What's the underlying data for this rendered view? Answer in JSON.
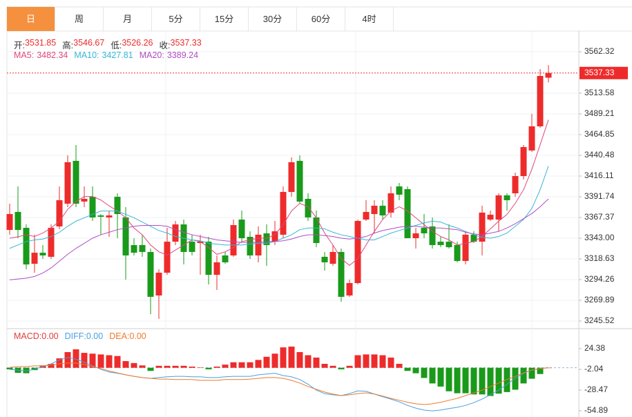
{
  "tabs": [
    {
      "label": "日",
      "active": true
    },
    {
      "label": "周",
      "active": false
    },
    {
      "label": "月",
      "active": false
    },
    {
      "label": "5分",
      "active": false
    },
    {
      "label": "15分",
      "active": false
    },
    {
      "label": "30分",
      "active": false
    },
    {
      "label": "60分",
      "active": false
    },
    {
      "label": "4时",
      "active": false
    }
  ],
  "chart_data": [
    {
      "type": "candlestick",
      "up_color": "#ee2b2b",
      "down_color": "#1a9a1a",
      "grid": true,
      "ohlc_labels": [
        "开:",
        "高:",
        "低:",
        "收:"
      ],
      "open": [
        3352.7,
        3373.9,
        3355.2,
        3312.9,
        3325.9,
        3321.1,
        3356.8,
        3383.6,
        3434.0,
        3386.1,
        3391.7,
        3369.8,
        3367.4,
        3391.7,
        3367.4,
        3334.9,
        3334.9,
        3326.8,
        3275.6,
        3302.4,
        3338.9,
        3359.2,
        3338.9,
        3337.3,
        3338.9,
        3299.9,
        3322.7,
        3322.7,
        3364.9,
        3344.6,
        3322.7,
        3348.7,
        3338.9,
        3347.1,
        3397.4,
        3434.0,
        3389.3,
        3367.4,
        3321.1,
        3312.9,
        3326.8,
        3275.6,
        3290.2,
        3364.9,
        3371.4,
        3381.2,
        3373.1,
        3403.9,
        3400.7,
        3343.0,
        3355.2,
        3356.8,
        3338.9,
        3338.9,
        3334.9,
        3316.2,
        3347.1,
        3338.9,
        3364.9,
        3364.9,
        3393.4,
        3395.8,
        3416.1,
        3446.2,
        3474.6,
        3531.85
      ],
      "high": [
        3383.6,
        3403.9,
        3359.2,
        3347.1,
        3334.9,
        3359.2,
        3403.9,
        3440.5,
        3452.7,
        3403.9,
        3403.9,
        3371.4,
        3375.5,
        3395.8,
        3379.6,
        3343.0,
        3347.1,
        3330.8,
        3306.4,
        3355.2,
        3363.3,
        3364.9,
        3347.1,
        3347.1,
        3344.6,
        3322.7,
        3326.8,
        3364.9,
        3375.5,
        3351.1,
        3356.8,
        3359.2,
        3363.3,
        3403.9,
        3438.0,
        3440.5,
        3395.8,
        3375.5,
        3326.8,
        3334.9,
        3330.8,
        3294.3,
        3364.9,
        3387.7,
        3387.7,
        3387.7,
        3403.9,
        3408.0,
        3403.9,
        3355.2,
        3371.4,
        3367.4,
        3344.6,
        3359.2,
        3338.9,
        3351.1,
        3351.1,
        3381.2,
        3375.5,
        3395.8,
        3395.8,
        3420.2,
        3452.7,
        3489.2,
        3542.0,
        3546.67
      ],
      "low": [
        3347.1,
        3343.0,
        3306.4,
        3302.4,
        3318.6,
        3318.6,
        3353.6,
        3379.6,
        3379.6,
        3379.6,
        3363.3,
        3347.1,
        3344.6,
        3343.0,
        3294.3,
        3322.7,
        3321.1,
        3253.6,
        3248.0,
        3299.9,
        3334.9,
        3312.1,
        3322.7,
        3299.9,
        3288.6,
        3282.1,
        3312.9,
        3321.1,
        3338.9,
        3318.6,
        3314.6,
        3310.5,
        3334.9,
        3343.0,
        3391.7,
        3383.6,
        3363.3,
        3332.4,
        3304.8,
        3310.5,
        3268.3,
        3274.0,
        3288.6,
        3363.3,
        3348.7,
        3364.9,
        3367.4,
        3387.7,
        3343.0,
        3330.8,
        3343.0,
        3330.8,
        3332.4,
        3330.8,
        3314.6,
        3312.1,
        3337.3,
        3322.7,
        3363.3,
        3351.1,
        3375.5,
        3391.7,
        3412.0,
        3444.5,
        3473.0,
        3526.26
      ],
      "close": [
        3371.4,
        3352.7,
        3312.1,
        3325.9,
        3322.7,
        3355.2,
        3387.7,
        3432.4,
        3383.6,
        3389.3,
        3367.4,
        3368.2,
        3369.8,
        3371.4,
        3322.7,
        3325.9,
        3326.8,
        3274.0,
        3302.4,
        3338.9,
        3359.2,
        3326.8,
        3326.8,
        3338.9,
        3299.9,
        3314.6,
        3314.6,
        3358.4,
        3343.0,
        3322.7,
        3347.1,
        3334.9,
        3351.1,
        3397.4,
        3432.4,
        3386.1,
        3367.4,
        3337.3,
        3314.6,
        3326.8,
        3274.0,
        3290.2,
        3363.3,
        3373.9,
        3381.2,
        3369.8,
        3395.8,
        3394.2,
        3343.0,
        3348.7,
        3348.7,
        3334.9,
        3334.9,
        3332.4,
        3316.2,
        3347.1,
        3338.9,
        3373.1,
        3370.6,
        3393.4,
        3387.7,
        3416.1,
        3450.2,
        3474.6,
        3533.9,
        3537.33
      ],
      "series": [
        {
          "name": "MA5:",
          "color": "#e0467c",
          "values": [
            3343,
            3344.6,
            3347,
            3345,
            3349,
            3355,
            3363,
            3377,
            3386,
            3392,
            3392,
            3388,
            3381,
            3375,
            3367,
            3355,
            3347,
            3335,
            3327,
            3323,
            3329,
            3335,
            3341,
            3339,
            3332,
            3324,
            3327,
            3332,
            3339,
            3341,
            3343,
            3343,
            3347,
            3359,
            3375,
            3384,
            3380,
            3367,
            3349,
            3335,
            3319,
            3311,
            3319,
            3335,
            3351,
            3365,
            3375,
            3380,
            3375,
            3367,
            3359,
            3351,
            3345,
            3341,
            3335,
            3337,
            3339,
            3345,
            3354,
            3363,
            3371,
            3384,
            3400,
            3424,
            3453,
            3482.34
          ]
        },
        {
          "name": "MA10:",
          "color": "#35b6d6",
          "values": [
            3331,
            3335,
            3339,
            3341,
            3342,
            3345,
            3350,
            3357,
            3363,
            3367,
            3371,
            3375,
            3375,
            3375,
            3371,
            3367,
            3362,
            3357,
            3352,
            3349,
            3345,
            3343,
            3341,
            3340,
            3337,
            3336,
            3335,
            3335,
            3335,
            3336,
            3337,
            3337,
            3339,
            3343,
            3347,
            3353,
            3355,
            3355,
            3354,
            3350,
            3347,
            3345,
            3343,
            3341,
            3341,
            3345,
            3349,
            3352,
            3355,
            3358,
            3361,
            3363,
            3362,
            3358,
            3355,
            3351,
            3347,
            3344,
            3343,
            3345,
            3349,
            3357,
            3365,
            3378,
            3400,
            3427.81
          ]
        },
        {
          "name": "MA20:",
          "color": "#b04cc4",
          "values": [
            3294,
            3295,
            3296,
            3298,
            3302,
            3308,
            3316,
            3324,
            3331,
            3337,
            3343,
            3347,
            3350,
            3353,
            3355,
            3357,
            3358,
            3358,
            3358,
            3357,
            3353,
            3350,
            3347,
            3345,
            3343,
            3341,
            3340,
            3339,
            3338,
            3338,
            3338,
            3339,
            3339,
            3340,
            3342,
            3345,
            3347,
            3347,
            3346,
            3345,
            3343,
            3342,
            3343,
            3345,
            3349,
            3352,
            3354,
            3356,
            3357,
            3357,
            3356,
            3355,
            3355,
            3354,
            3353,
            3350,
            3348,
            3347,
            3349,
            3351,
            3355,
            3360,
            3366,
            3372,
            3380,
            3389.24
          ]
        }
      ],
      "ylim": [
        3237.4,
        3585.07
      ],
      "yticks": [
        3562.32,
        3513.58,
        3489.21,
        3464.85,
        3440.48,
        3416.11,
        3391.74,
        3367.37,
        {
          "value": 3343,
          "label": "3343.00"
        },
        3318.63,
        3294.26,
        3269.89,
        3245.52
      ]
    },
    {
      "type": "macd",
      "up_color": "#ee2b2b",
      "down_color": "#1a9a1a",
      "series": [
        {
          "name": "MACD:",
          "color": "#e03c3c",
          "current": {
            "value": 0,
            "label": "0.00"
          },
          "values": [
            -2,
            -6.5,
            -7,
            -3,
            3,
            5,
            12,
            20,
            23.5,
            19,
            18,
            17,
            16,
            15,
            8.5,
            6,
            3,
            -4,
            2.5,
            2.5,
            2.5,
            2.5,
            1.5,
            0.5,
            -2,
            1.5,
            4,
            7,
            7,
            7,
            10,
            14,
            18,
            26,
            27,
            20,
            16,
            13,
            5,
            2.5,
            -2,
            2.5,
            16,
            17,
            17,
            16,
            13,
            5,
            -4,
            -7,
            -13,
            -20,
            -24,
            -30,
            -32.5,
            -32.5,
            -34,
            -34,
            -36,
            -33,
            -31,
            -28,
            -20,
            -14,
            -8,
            0
          ]
        },
        {
          "name": "DIFF:",
          "color": "#4a9fe0",
          "current": {
            "value": 0,
            "label": "0.00"
          },
          "values": [
            -2,
            -3,
            -4,
            -2,
            1.5,
            5,
            10,
            13,
            11,
            7,
            2.5,
            -2,
            -5.5,
            -7,
            -9,
            -11,
            -12.5,
            -13.5,
            -12.5,
            -11.5,
            -11,
            -11,
            -11.5,
            -11.5,
            -12.5,
            -12.5,
            -11.5,
            -11,
            -11,
            -11,
            -9,
            -8,
            -7,
            -10,
            -11.5,
            -15,
            -21,
            -28.5,
            -33,
            -34.5,
            -35.5,
            -33,
            -29.5,
            -30,
            -33.5,
            -37,
            -40,
            -43.5,
            -48,
            -51.5,
            -54,
            -55,
            -54,
            -52,
            -50.5,
            -48,
            -44.5,
            -40,
            -34.5,
            -28.5,
            -21,
            -13.5,
            -7,
            -3,
            -1,
            0
          ]
        },
        {
          "name": "DEA:",
          "color": "#ee7a2a",
          "current": {
            "value": 0,
            "label": "0.00"
          },
          "values": [
            0.5,
            1.5,
            1.5,
            2.5,
            2.5,
            3.5,
            5,
            6,
            6,
            4,
            1.5,
            -1,
            -4,
            -6.5,
            -9,
            -11,
            -12.5,
            -13.5,
            -14.5,
            -14.5,
            -15,
            -15,
            -15,
            -16,
            -16,
            -16,
            -15,
            -15,
            -15,
            -14.5,
            -13.5,
            -12.5,
            -12.5,
            -13.5,
            -16,
            -19.5,
            -24,
            -27.5,
            -31,
            -33.5,
            -35.5,
            -34.5,
            -33,
            -32,
            -33.5,
            -36,
            -39,
            -41.5,
            -44,
            -46,
            -47,
            -46,
            -44,
            -41.5,
            -39,
            -35.5,
            -32,
            -28.5,
            -24,
            -19.5,
            -15,
            -11,
            -6.5,
            -3,
            -1,
            0
          ]
        }
      ],
      "ylim": [
        -59.29,
        49.04
      ],
      "yticks": [
        24.38,
        -2.04,
        -28.47,
        -54.89
      ]
    }
  ]
}
